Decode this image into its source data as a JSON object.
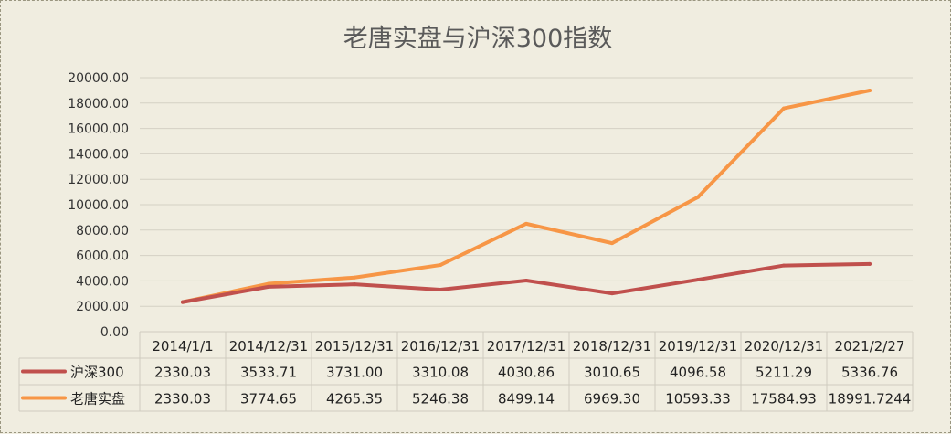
{
  "chart_data": {
    "type": "line",
    "title": "老唐实盘与沪深300指数",
    "categories": [
      "2014/1/1",
      "2014/12/31",
      "2015/12/31",
      "2016/12/31",
      "2017/12/31",
      "2018/12/31",
      "2019/12/31",
      "2020/12/31",
      "2021/2/27"
    ],
    "series": [
      {
        "name": "沪深300",
        "values": [
          2330.03,
          3533.71,
          3731.0,
          3310.08,
          4030.86,
          3010.65,
          4096.58,
          5211.29,
          5336.76
        ],
        "labels": [
          "2330.03",
          "3533.71",
          "3731.00",
          "3310.08",
          "4030.86",
          "3010.65",
          "4096.58",
          "5211.29",
          "5336.76"
        ],
        "color": "#c0504d"
      },
      {
        "name": "老唐实盘",
        "values": [
          2330.03,
          3774.65,
          4265.35,
          5246.38,
          8499.14,
          6969.3,
          10593.33,
          17584.93,
          18991.7244
        ],
        "labels": [
          "2330.03",
          "3774.65",
          "4265.35",
          "5246.38",
          "8499.14",
          "6969.30",
          "10593.33",
          "17584.93",
          "18991.7244"
        ],
        "color": "#f79646"
      }
    ],
    "ylim": [
      0,
      20000
    ],
    "yticks": [
      "0.00",
      "2000.00",
      "4000.00",
      "6000.00",
      "8000.00",
      "10000.00",
      "12000.00",
      "14000.00",
      "16000.00",
      "18000.00",
      "20000.00"
    ],
    "grid": true,
    "legend": "data-table-left"
  }
}
